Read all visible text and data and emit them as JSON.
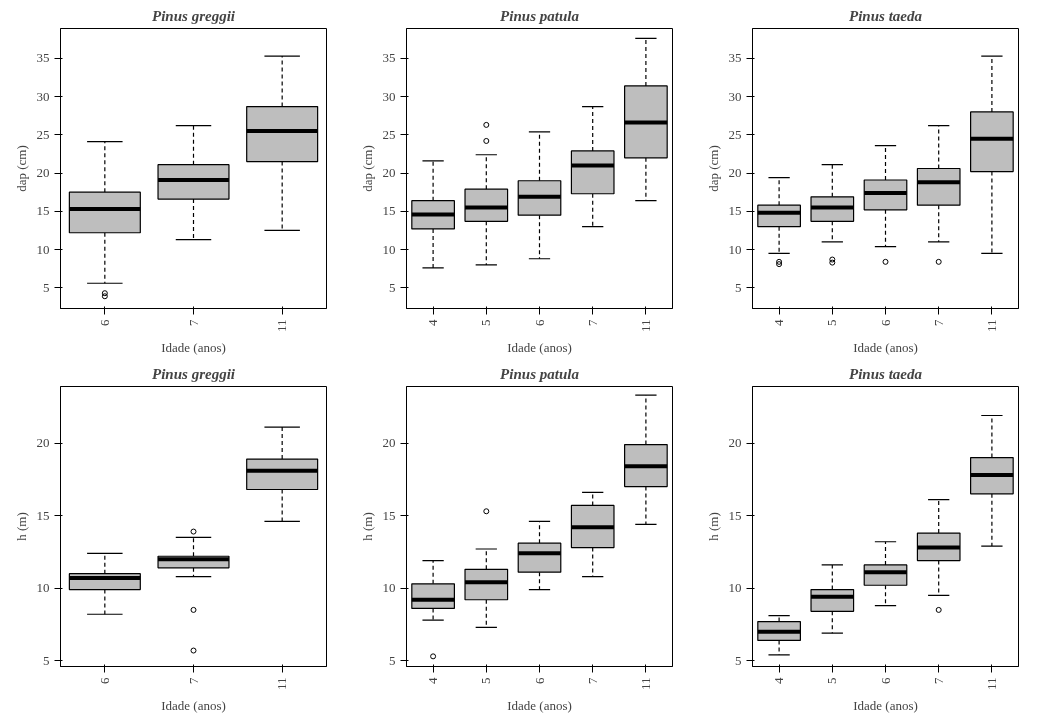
{
  "chart_data": [
    {
      "type": "box",
      "title": "Pinus greggii",
      "xlabel": "Idade (anos)",
      "ylabel": "dap (cm)",
      "categories": [
        "6",
        "7",
        "11"
      ],
      "ylim": [
        2.3,
        38.9
      ],
      "yticks": [
        5,
        10,
        15,
        20,
        25,
        30,
        35
      ],
      "boxes": [
        {
          "low": 5.6,
          "q1": 12.2,
          "median": 15.3,
          "q3": 17.5,
          "high": 24.1,
          "outliers": [
            4.3,
            3.9
          ]
        },
        {
          "low": 11.3,
          "q1": 16.6,
          "median": 19.1,
          "q3": 21.1,
          "high": 26.2
        },
        {
          "low": 12.5,
          "q1": 21.5,
          "median": 25.5,
          "q3": 28.7,
          "high": 35.3
        }
      ]
    },
    {
      "type": "box",
      "title": "Pinus patula",
      "xlabel": "Idade (anos)",
      "ylabel": "dap (cm)",
      "categories": [
        "4",
        "5",
        "6",
        "7",
        "11"
      ],
      "ylim": [
        2.3,
        38.9
      ],
      "yticks": [
        5,
        10,
        15,
        20,
        25,
        30,
        35
      ],
      "boxes": [
        {
          "low": 7.6,
          "q1": 12.7,
          "median": 14.6,
          "q3": 16.4,
          "high": 21.6
        },
        {
          "low": 8.0,
          "q1": 13.7,
          "median": 15.5,
          "q3": 17.9,
          "high": 22.4,
          "outliers": [
            26.3,
            24.2
          ]
        },
        {
          "low": 8.8,
          "q1": 14.5,
          "median": 16.9,
          "q3": 19.0,
          "high": 25.4
        },
        {
          "low": 13.0,
          "q1": 17.3,
          "median": 21.0,
          "q3": 22.9,
          "high": 28.7
        },
        {
          "low": 16.4,
          "q1": 22.0,
          "median": 26.6,
          "q3": 31.4,
          "high": 37.6
        }
      ]
    },
    {
      "type": "box",
      "title": "Pinus taeda",
      "xlabel": "Idade (anos)",
      "ylabel": "dap (cm)",
      "categories": [
        "4",
        "5",
        "6",
        "7",
        "11"
      ],
      "ylim": [
        2.3,
        38.9
      ],
      "yticks": [
        5,
        10,
        15,
        20,
        25,
        30,
        35
      ],
      "boxes": [
        {
          "low": 9.5,
          "q1": 13.0,
          "median": 14.8,
          "q3": 15.8,
          "high": 19.4,
          "outliers": [
            8.4,
            8.1
          ]
        },
        {
          "low": 11.0,
          "q1": 13.7,
          "median": 15.5,
          "q3": 16.9,
          "high": 21.1,
          "outliers": [
            8.7,
            8.3
          ]
        },
        {
          "low": 10.4,
          "q1": 15.2,
          "median": 17.4,
          "q3": 19.1,
          "high": 23.6,
          "outliers": [
            8.4
          ]
        },
        {
          "low": 11.0,
          "q1": 15.8,
          "median": 18.8,
          "q3": 20.6,
          "high": 26.2,
          "outliers": [
            8.4
          ]
        },
        {
          "low": 9.5,
          "q1": 20.2,
          "median": 24.5,
          "q3": 28.0,
          "high": 35.3
        }
      ]
    },
    {
      "type": "box",
      "title": "Pinus greggii",
      "xlabel": "Idade (anos)",
      "ylabel": "h (m)",
      "categories": [
        "6",
        "7",
        "11"
      ],
      "ylim": [
        4.6,
        23.9
      ],
      "yticks": [
        5,
        10,
        15,
        20
      ],
      "boxes": [
        {
          "low": 8.2,
          "q1": 9.9,
          "median": 10.7,
          "q3": 11.0,
          "high": 12.4
        },
        {
          "low": 10.8,
          "q1": 11.4,
          "median": 12.0,
          "q3": 12.2,
          "high": 13.5,
          "outliers": [
            13.9,
            8.5,
            5.7
          ]
        },
        {
          "low": 14.6,
          "q1": 16.8,
          "median": 18.1,
          "q3": 18.9,
          "high": 21.1
        }
      ]
    },
    {
      "type": "box",
      "title": "Pinus patula",
      "xlabel": "Idade (anos)",
      "ylabel": "h (m)",
      "categories": [
        "4",
        "5",
        "6",
        "7",
        "11"
      ],
      "ylim": [
        4.6,
        23.9
      ],
      "yticks": [
        5,
        10,
        15,
        20
      ],
      "boxes": [
        {
          "low": 7.8,
          "q1": 8.6,
          "median": 9.2,
          "q3": 10.3,
          "high": 11.9,
          "outliers": [
            5.3
          ]
        },
        {
          "low": 7.3,
          "q1": 9.2,
          "median": 10.4,
          "q3": 11.3,
          "high": 12.7,
          "outliers": [
            15.3
          ]
        },
        {
          "low": 9.9,
          "q1": 11.1,
          "median": 12.4,
          "q3": 13.1,
          "high": 14.6
        },
        {
          "low": 10.8,
          "q1": 12.8,
          "median": 14.2,
          "q3": 15.7,
          "high": 16.6
        },
        {
          "low": 14.4,
          "q1": 17.0,
          "median": 18.4,
          "q3": 19.9,
          "high": 23.3
        }
      ]
    },
    {
      "type": "box",
      "title": "Pinus taeda",
      "xlabel": "Idade (anos)",
      "ylabel": "h (m)",
      "categories": [
        "4",
        "5",
        "6",
        "7",
        "11"
      ],
      "ylim": [
        4.6,
        23.9
      ],
      "yticks": [
        5,
        10,
        15,
        20
      ],
      "boxes": [
        {
          "low": 5.4,
          "q1": 6.4,
          "median": 7.0,
          "q3": 7.7,
          "high": 8.1
        },
        {
          "low": 6.9,
          "q1": 8.4,
          "median": 9.4,
          "q3": 9.9,
          "high": 11.6
        },
        {
          "low": 8.8,
          "q1": 10.2,
          "median": 11.1,
          "q3": 11.6,
          "high": 13.2
        },
        {
          "low": 9.5,
          "q1": 11.9,
          "median": 12.8,
          "q3": 13.8,
          "high": 16.1,
          "outliers": [
            8.5
          ]
        },
        {
          "low": 12.9,
          "q1": 16.5,
          "median": 17.8,
          "q3": 19.0,
          "high": 21.9
        }
      ]
    }
  ]
}
